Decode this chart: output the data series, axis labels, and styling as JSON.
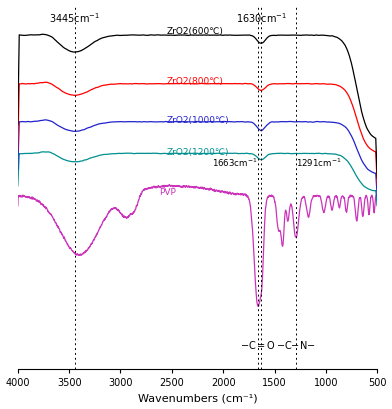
{
  "title": "",
  "xlabel": "Wavenumbers (cm⁻¹)",
  "xlim": [
    4000,
    500
  ],
  "annotation_3445": 3445,
  "annotation_1630": 1630,
  "annotation_1663": 1663,
  "annotation_1291": 1291,
  "colors": {
    "ZrO2_600": "#000000",
    "ZrO2_800": "#ff0000",
    "ZrO2_1000": "#2222cc",
    "ZrO2_1200": "#009090",
    "PVP": "#cc33bb"
  },
  "labels": {
    "ZrO2_600": "ZrO2(600℃)",
    "ZrO2_800": "ZrO2(800℃)",
    "ZrO2_1000": "ZrO2(1000℃)",
    "ZrO2_1200": "ZrO2(1200℃)",
    "PVP": "PVP"
  },
  "background_color": "#ffffff"
}
